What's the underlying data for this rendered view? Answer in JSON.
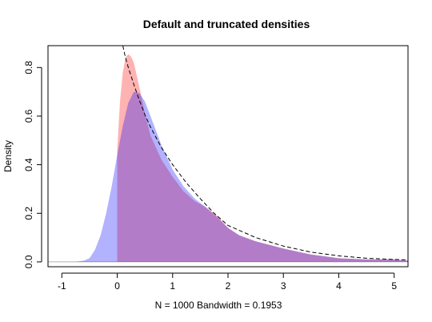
{
  "chart_data": {
    "type": "area",
    "title": "Default and truncated densities",
    "xlabel": "N = 1000   Bandwidth = 0.1953",
    "ylabel": "Density",
    "xlim": [
      -1.25,
      5.25
    ],
    "ylim": [
      -0.02,
      0.89
    ],
    "x_ticks": [
      -1,
      0,
      1,
      2,
      3,
      4,
      5
    ],
    "y_ticks": [
      0.0,
      0.2,
      0.4,
      0.6,
      0.8
    ],
    "x_tick_labels": [
      "-1",
      "0",
      "1",
      "2",
      "3",
      "4",
      "5"
    ],
    "y_tick_labels": [
      "0.0",
      "0.2",
      "0.4",
      "0.6",
      "0.8"
    ],
    "grid": false,
    "legend": "none",
    "series": [
      {
        "style": "filled-area",
        "color": "#ff0000",
        "opacity": 0.3,
        "x": [
          0.0,
          0.05,
          0.1,
          0.15,
          0.2,
          0.25,
          0.3,
          0.4,
          0.5,
          0.6,
          0.8,
          1.0,
          1.2,
          1.4,
          1.6,
          1.8,
          2.0,
          2.2,
          2.5,
          3.0,
          3.5,
          4.0,
          4.5,
          5.0,
          5.25
        ],
        "y": [
          0.46,
          0.66,
          0.78,
          0.84,
          0.855,
          0.845,
          0.82,
          0.72,
          0.61,
          0.52,
          0.42,
          0.35,
          0.29,
          0.25,
          0.225,
          0.19,
          0.14,
          0.11,
          0.085,
          0.055,
          0.03,
          0.015,
          0.01,
          0.01,
          0.005
        ]
      },
      {
        "style": "filled-area",
        "color": "#0000ff",
        "opacity": 0.3,
        "x": [
          -0.75,
          -0.6,
          -0.5,
          -0.4,
          -0.3,
          -0.2,
          -0.1,
          0.0,
          0.1,
          0.2,
          0.3,
          0.4,
          0.5,
          0.6,
          0.8,
          1.0,
          1.2,
          1.4,
          1.6,
          1.8,
          2.0,
          2.2,
          2.5,
          3.0,
          3.5,
          4.0,
          4.5,
          5.0,
          5.25
        ],
        "y": [
          0.0,
          0.005,
          0.015,
          0.05,
          0.11,
          0.2,
          0.31,
          0.44,
          0.56,
          0.655,
          0.7,
          0.695,
          0.66,
          0.6,
          0.48,
          0.38,
          0.31,
          0.26,
          0.225,
          0.185,
          0.14,
          0.11,
          0.085,
          0.055,
          0.03,
          0.015,
          0.01,
          0.01,
          0.005
        ]
      },
      {
        "style": "dashed-line",
        "color": "#000000",
        "x": [
          0.1,
          0.15,
          0.2,
          0.3,
          0.4,
          0.5,
          0.6,
          0.8,
          1.0,
          1.25,
          1.5,
          1.75,
          2.0,
          2.5,
          3.0,
          3.5,
          4.0,
          4.5,
          5.0,
          5.25
        ],
        "y": [
          0.89,
          0.84,
          0.8,
          0.73,
          0.665,
          0.605,
          0.555,
          0.47,
          0.4,
          0.325,
          0.26,
          0.2,
          0.15,
          0.1,
          0.065,
          0.04,
          0.025,
          0.015,
          0.01,
          0.008
        ]
      }
    ]
  }
}
